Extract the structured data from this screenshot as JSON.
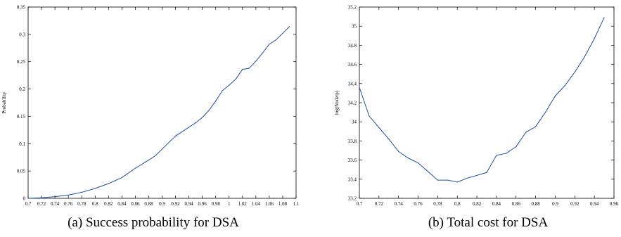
{
  "chart_data": [
    {
      "type": "line",
      "caption": "(a) Success probability for DSA",
      "title": "",
      "xlabel": "",
      "ylabel": "Probability",
      "xlim": [
        0.7,
        1.1
      ],
      "ylim": [
        0,
        0.35
      ],
      "grid": false,
      "color": "#1f4fa0",
      "xticks": [
        "0.7",
        "0.72",
        "0.74",
        "0.76",
        "0.78",
        "0.8",
        "0.82",
        "0.84",
        "0.86",
        "0.88",
        "0.9",
        "0.92",
        "0.94",
        "0.96",
        "0.98",
        "1",
        "1.02",
        "1.04",
        "1.06",
        "1.08",
        "1.1"
      ],
      "yticks": [
        "0",
        "0.05",
        "0.1",
        "0.15",
        "0.2",
        "0.25",
        "0.3",
        "0.35"
      ],
      "series": [
        {
          "x": [
            0.7,
            0.72,
            0.74,
            0.76,
            0.78,
            0.8,
            0.82,
            0.84,
            0.86,
            0.88,
            0.89,
            0.9,
            0.92,
            0.94,
            0.95,
            0.96,
            0.97,
            0.98,
            0.99,
            1.0,
            1.01,
            1.02,
            1.03,
            1.04,
            1.05,
            1.06,
            1.07,
            1.08,
            1.09
          ],
          "y": [
            0.0,
            0.001,
            0.003,
            0.006,
            0.011,
            0.018,
            0.027,
            0.038,
            0.055,
            0.07,
            0.078,
            0.09,
            0.114,
            0.13,
            0.138,
            0.148,
            0.161,
            0.178,
            0.197,
            0.207,
            0.218,
            0.236,
            0.238,
            0.251,
            0.266,
            0.282,
            0.29,
            0.302,
            0.314
          ]
        }
      ]
    },
    {
      "type": "line",
      "caption": "(b) Total cost for DSA",
      "title": "",
      "xlabel": "",
      "ylabel": "log(Node/p)",
      "xlim": [
        0.7,
        0.96
      ],
      "ylim": [
        33.2,
        35.2
      ],
      "grid": false,
      "color": "#1f4fa0",
      "xticks": [
        "0.7",
        "0.72",
        "0.74",
        "0.76",
        "0.78",
        "0.8",
        "0.82",
        "0.84",
        "0.86",
        "0.88",
        "0.9",
        "0.92",
        "0.94",
        "0.96"
      ],
      "yticks": [
        "33.2",
        "33.4",
        "33.6",
        "33.8",
        "34",
        "34.2",
        "34.4",
        "34.6",
        "34.8",
        "35",
        "35.2"
      ],
      "series": [
        {
          "x": [
            0.7,
            0.71,
            0.72,
            0.73,
            0.74,
            0.75,
            0.76,
            0.77,
            0.78,
            0.79,
            0.8,
            0.81,
            0.82,
            0.83,
            0.84,
            0.85,
            0.86,
            0.87,
            0.88,
            0.89,
            0.9,
            0.91,
            0.92,
            0.93,
            0.94,
            0.95
          ],
          "y": [
            34.36,
            34.06,
            33.94,
            33.82,
            33.69,
            33.62,
            33.57,
            33.48,
            33.39,
            33.39,
            33.37,
            33.41,
            33.44,
            33.47,
            33.65,
            33.67,
            33.74,
            33.89,
            33.95,
            34.1,
            34.27,
            34.38,
            34.52,
            34.68,
            34.87,
            35.09
          ]
        }
      ]
    }
  ]
}
